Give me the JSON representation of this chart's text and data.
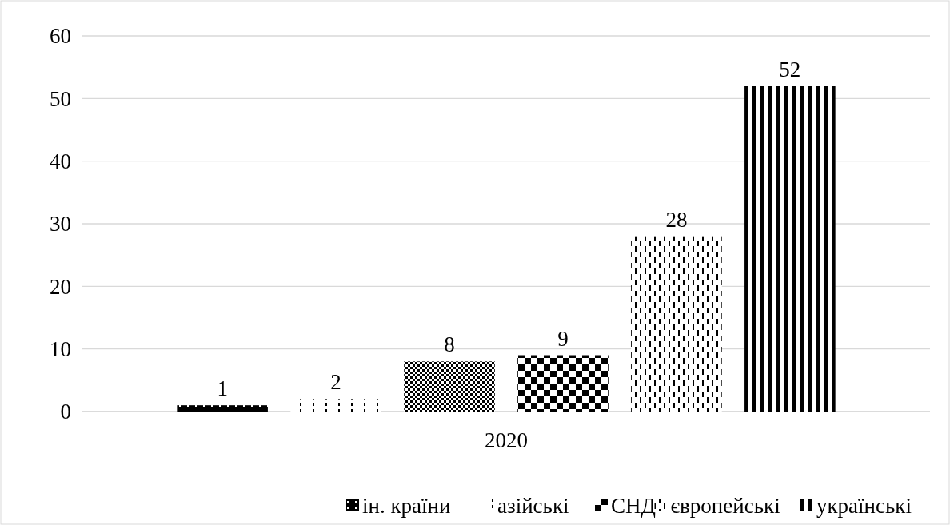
{
  "chart_data": {
    "type": "bar",
    "categories": [
      "2020"
    ],
    "series": [
      {
        "name": "ін. країни",
        "color": "#000000",
        "values": [
          1
        ]
      },
      {
        "name": "азійські",
        "color": "#000000",
        "values": [
          2
        ]
      },
      {
        "color": "#000000",
        "values": [
          8
        ]
      },
      {
        "name": "СНД",
        "color": "#000000",
        "values": [
          9
        ]
      },
      {
        "name": "європейські",
        "color": "#000000",
        "values": [
          28
        ]
      },
      {
        "name": "українські",
        "color": "#000000",
        "values": [
          52
        ]
      }
    ],
    "ylim": [
      0,
      60
    ],
    "yticks": [
      0,
      10,
      20,
      30,
      40,
      50,
      60
    ],
    "grid": "y",
    "data_labels": true,
    "legend": "bottom"
  }
}
